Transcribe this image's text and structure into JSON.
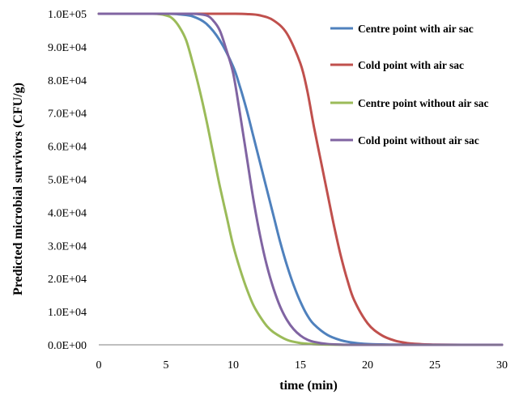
{
  "chart_data": {
    "type": "line",
    "title": "",
    "xlabel": "time (min)",
    "ylabel": "Predicted microbial survivors (CFU/g)",
    "xlim": [
      0,
      30
    ],
    "ylim": [
      0,
      100000
    ],
    "x_ticks": [
      0,
      5,
      10,
      15,
      20,
      25,
      30
    ],
    "x_tick_labels": [
      "0",
      "5",
      "10",
      "15",
      "20",
      "25",
      "30"
    ],
    "y_ticks": [
      0,
      10000,
      20000,
      30000,
      40000,
      50000,
      60000,
      70000,
      80000,
      90000,
      100000
    ],
    "y_tick_labels": [
      "0.0E+00",
      "1.0E+04",
      "2.0E+04",
      "3.0E+04",
      "4.0E+04",
      "5.0E+04",
      "6.0E+04",
      "7.0E+04",
      "8.0E+04",
      "9.0E+04",
      "1.0E+05"
    ],
    "grid": false,
    "legend_position": "top-right",
    "series": [
      {
        "name": "Centre point with air sac",
        "color": "#4f81bd",
        "x": [
          0,
          5,
          6,
          7,
          8,
          9,
          10,
          10.5,
          11,
          11.5,
          12,
          12.5,
          13,
          13.5,
          14,
          14.5,
          15,
          15.5,
          16,
          17,
          18,
          19,
          20,
          22,
          25,
          30
        ],
        "y": [
          100000,
          100000,
          99800,
          99200,
          97000,
          92000,
          84000,
          78000,
          71000,
          63000,
          55000,
          47000,
          39000,
          31000,
          24000,
          18000,
          13000,
          9000,
          6200,
          3000,
          1400,
          600,
          250,
          50,
          0,
          0
        ]
      },
      {
        "name": "Cold point with air sac",
        "color": "#c0504d",
        "x": [
          0,
          5,
          8,
          10,
          11,
          12,
          13,
          14,
          15,
          15.5,
          16,
          16.5,
          17,
          17.5,
          18,
          18.5,
          19,
          20,
          21,
          22,
          23,
          24,
          25,
          27,
          30
        ],
        "y": [
          100000,
          100000,
          100000,
          100000,
          99900,
          99500,
          98000,
          94000,
          85000,
          77000,
          66000,
          56000,
          46000,
          36000,
          27000,
          19500,
          13500,
          6500,
          3000,
          1300,
          500,
          200,
          80,
          0,
          0
        ]
      },
      {
        "name": "Centre point without air sac",
        "color": "#9bbb59",
        "x": [
          0,
          4,
          5,
          5.5,
          6,
          6.5,
          7,
          7.5,
          8,
          8.5,
          9,
          9.5,
          10,
          10.5,
          11,
          11.5,
          12,
          12.5,
          13,
          14,
          15,
          16,
          17,
          18,
          20,
          25,
          30
        ],
        "y": [
          100000,
          100000,
          99500,
          98500,
          96000,
          92000,
          85000,
          77000,
          68000,
          58000,
          48000,
          39000,
          30000,
          23000,
          17000,
          12000,
          8500,
          5700,
          3800,
          1500,
          550,
          200,
          70,
          20,
          0,
          0,
          0
        ]
      },
      {
        "name": "Cold point without air sac",
        "color": "#8064a2",
        "x": [
          0,
          5,
          7,
          8,
          8.5,
          9,
          9.5,
          10,
          10.5,
          11,
          11.5,
          12,
          12.5,
          13,
          13.5,
          14,
          14.5,
          15,
          15.5,
          16,
          17,
          18,
          20,
          25,
          30
        ],
        "y": [
          100000,
          100000,
          100000,
          99500,
          98000,
          95000,
          89000,
          82000,
          70000,
          57000,
          44000,
          33000,
          24000,
          17000,
          11500,
          7500,
          4700,
          2800,
          1600,
          900,
          250,
          70,
          0,
          0,
          0
        ]
      }
    ]
  }
}
